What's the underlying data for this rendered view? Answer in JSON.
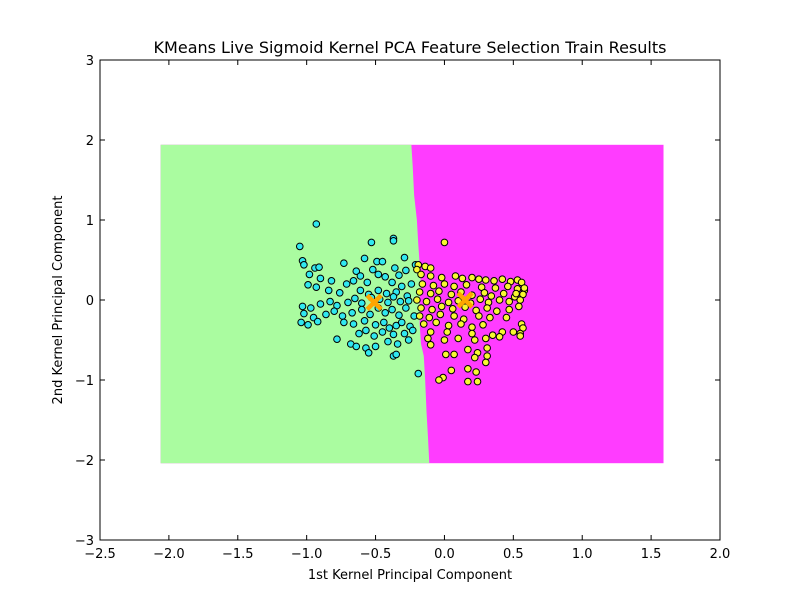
{
  "chart_data": {
    "type": "scatter",
    "title": "KMeans Live Sigmoid Kernel PCA Feature Selection Train Results",
    "xlabel": "1st Kernel Principal Component",
    "ylabel": "2nd Kernel Principal Component",
    "xlim": [
      -2.5,
      2.0
    ],
    "ylim": [
      -3,
      3
    ],
    "xticks": [
      -2.5,
      -2.0,
      -1.5,
      -1.0,
      -0.5,
      0.0,
      0.5,
      1.0,
      1.5,
      2.0
    ],
    "xtick_labels": [
      "−2.5",
      "−2.0",
      "−1.5",
      "−1.0",
      "−0.5",
      "0.0",
      "0.5",
      "1.0",
      "1.5",
      "2.0"
    ],
    "yticks": [
      -3,
      -2,
      -1,
      0,
      1,
      2,
      3
    ],
    "ytick_labels": [
      "−3",
      "−2",
      "−1",
      "0",
      "1",
      "2",
      "3"
    ],
    "grid": false,
    "decision_regions": {
      "x_range": [
        -2.06,
        1.59
      ],
      "y_range": [
        -2.04,
        1.94
      ],
      "boundary": [
        [
          1.94,
          -0.24
        ],
        [
          1.66,
          -0.23
        ],
        [
          1.31,
          -0.22
        ],
        [
          1.0,
          -0.2
        ],
        [
          0.7,
          -0.19
        ],
        [
          0.45,
          -0.18
        ],
        [
          0.2,
          -0.17
        ],
        [
          0.0,
          -0.18
        ],
        [
          -0.3,
          -0.18
        ],
        [
          -0.55,
          -0.17
        ],
        [
          -0.7,
          -0.15
        ],
        [
          -1.0,
          -0.14
        ],
        [
          -1.4,
          -0.13
        ],
        [
          -1.7,
          -0.12
        ],
        [
          -2.04,
          -0.11
        ]
      ],
      "left_color": "#aafca0",
      "right_color": "#ff3cff"
    },
    "series": [
      {
        "color": "#30e8f0",
        "points": [
          [
            -1.05,
            0.67
          ],
          [
            -0.93,
            0.95
          ],
          [
            -0.53,
            0.72
          ],
          [
            -0.37,
            0.77
          ],
          [
            -0.37,
            0.74
          ],
          [
            -0.29,
            0.53
          ],
          [
            -0.58,
            0.52
          ],
          [
            -0.49,
            0.48
          ],
          [
            -0.45,
            0.48
          ],
          [
            -1.03,
            0.49
          ],
          [
            -1.02,
            0.44
          ],
          [
            -0.73,
            0.46
          ],
          [
            -0.94,
            0.4
          ],
          [
            -0.91,
            0.41
          ],
          [
            -0.36,
            0.4
          ],
          [
            -0.52,
            0.38
          ],
          [
            -0.98,
            0.32
          ],
          [
            -0.64,
            0.36
          ],
          [
            -0.61,
            0.3
          ],
          [
            -0.48,
            0.32
          ],
          [
            -0.43,
            0.29
          ],
          [
            -0.33,
            0.31
          ],
          [
            -0.28,
            0.37
          ],
          [
            -0.9,
            0.27
          ],
          [
            -0.82,
            0.24
          ],
          [
            -0.99,
            0.19
          ],
          [
            -0.93,
            0.16
          ],
          [
            -0.71,
            0.2
          ],
          [
            -0.66,
            0.24
          ],
          [
            -0.56,
            0.22
          ],
          [
            -0.38,
            0.22
          ],
          [
            -0.31,
            0.17
          ],
          [
            -0.84,
            0.12
          ],
          [
            -0.76,
            0.09
          ],
          [
            -0.61,
            0.12
          ],
          [
            -0.55,
            0.07
          ],
          [
            -0.48,
            0.12
          ],
          [
            -0.42,
            0.08
          ],
          [
            -0.35,
            0.1
          ],
          [
            -0.27,
            0.05
          ],
          [
            -1.03,
            -0.08
          ],
          [
            -0.97,
            -0.1
          ],
          [
            -0.9,
            -0.05
          ],
          [
            -0.83,
            -0.02
          ],
          [
            -0.78,
            -0.07
          ],
          [
            -0.7,
            -0.03
          ],
          [
            -0.65,
            0.02
          ],
          [
            -0.6,
            -0.04
          ],
          [
            -0.53,
            0.03
          ],
          [
            -0.47,
            0.01
          ],
          [
            -0.41,
            -0.03
          ],
          [
            -0.37,
            0.04
          ],
          [
            -0.32,
            -0.02
          ],
          [
            -0.26,
            -0.01
          ],
          [
            -1.02,
            -0.17
          ],
          [
            -0.95,
            -0.22
          ],
          [
            -0.86,
            -0.18
          ],
          [
            -0.8,
            -0.14
          ],
          [
            -0.74,
            -0.2
          ],
          [
            -0.67,
            -0.16
          ],
          [
            -0.6,
            -0.12
          ],
          [
            -0.54,
            -0.18
          ],
          [
            -0.48,
            -0.1
          ],
          [
            -0.43,
            -0.16
          ],
          [
            -0.38,
            -0.12
          ],
          [
            -0.33,
            -0.19
          ],
          [
            -0.28,
            -0.1
          ],
          [
            -1.04,
            -0.28
          ],
          [
            -0.99,
            -0.31
          ],
          [
            -0.92,
            -0.27
          ],
          [
            -0.73,
            -0.28
          ],
          [
            -0.66,
            -0.3
          ],
          [
            -0.58,
            -0.26
          ],
          [
            -0.5,
            -0.31
          ],
          [
            -0.44,
            -0.28
          ],
          [
            -0.4,
            -0.35
          ],
          [
            -0.35,
            -0.32
          ],
          [
            -0.31,
            -0.28
          ],
          [
            -0.25,
            -0.33
          ],
          [
            -0.62,
            -0.42
          ],
          [
            -0.57,
            -0.38
          ],
          [
            -0.51,
            -0.45
          ],
          [
            -0.45,
            -0.4
          ],
          [
            -0.37,
            -0.43
          ],
          [
            -0.29,
            -0.42
          ],
          [
            -0.23,
            -0.38
          ],
          [
            -0.78,
            -0.49
          ],
          [
            -0.68,
            -0.55
          ],
          [
            -0.64,
            -0.58
          ],
          [
            -0.57,
            -0.6
          ],
          [
            -0.5,
            -0.58
          ],
          [
            -0.41,
            -0.52
          ],
          [
            -0.34,
            -0.55
          ],
          [
            -0.26,
            -0.5
          ],
          [
            -0.55,
            -0.66
          ],
          [
            -0.37,
            -0.7
          ],
          [
            -0.35,
            -0.68
          ],
          [
            -0.19,
            -0.92
          ],
          [
            -0.21,
            0.44
          ],
          [
            -0.24,
            0.2
          ],
          [
            -0.22,
            -0.2
          ]
        ]
      },
      {
        "color": "#f8f830",
        "points": [
          [
            0.0,
            0.72
          ],
          [
            -0.19,
            0.44
          ],
          [
            -0.14,
            0.42
          ],
          [
            -0.1,
            0.4
          ],
          [
            -0.2,
            0.38
          ],
          [
            -0.17,
            0.32
          ],
          [
            -0.1,
            0.3
          ],
          [
            -0.02,
            0.28
          ],
          [
            0.08,
            0.3
          ],
          [
            0.13,
            0.27
          ],
          [
            0.2,
            0.28
          ],
          [
            0.25,
            0.26
          ],
          [
            0.3,
            0.25
          ],
          [
            0.36,
            0.24
          ],
          [
            0.42,
            0.26
          ],
          [
            0.48,
            0.23
          ],
          [
            0.53,
            0.25
          ],
          [
            0.56,
            0.22
          ],
          [
            -0.16,
            0.2
          ],
          [
            -0.08,
            0.18
          ],
          [
            0.0,
            0.2
          ],
          [
            0.07,
            0.17
          ],
          [
            0.16,
            0.19
          ],
          [
            0.27,
            0.16
          ],
          [
            0.37,
            0.15
          ],
          [
            0.46,
            0.17
          ],
          [
            0.53,
            0.14
          ],
          [
            0.58,
            0.12
          ],
          [
            -0.18,
            0.1
          ],
          [
            -0.1,
            0.08
          ],
          [
            -0.04,
            0.11
          ],
          [
            0.05,
            0.07
          ],
          [
            0.12,
            0.1
          ],
          [
            0.2,
            0.06
          ],
          [
            0.29,
            0.09
          ],
          [
            0.34,
            0.05
          ],
          [
            0.43,
            0.08
          ],
          [
            0.51,
            0.04
          ],
          [
            0.57,
            0.07
          ],
          [
            -0.2,
            0.0
          ],
          [
            -0.13,
            -0.02
          ],
          [
            -0.05,
            0.01
          ],
          [
            0.03,
            -0.03
          ],
          [
            0.1,
            -0.01
          ],
          [
            0.19,
            -0.04
          ],
          [
            0.26,
            0.01
          ],
          [
            0.32,
            -0.03
          ],
          [
            0.4,
            0.0
          ],
          [
            0.47,
            -0.02
          ],
          [
            0.55,
            0.0
          ],
          [
            -0.17,
            -0.1
          ],
          [
            -0.09,
            -0.12
          ],
          [
            -0.02,
            -0.08
          ],
          [
            0.06,
            -0.11
          ],
          [
            0.15,
            -0.09
          ],
          [
            0.23,
            -0.13
          ],
          [
            0.31,
            -0.1
          ],
          [
            0.38,
            -0.14
          ],
          [
            0.47,
            -0.12
          ],
          [
            0.54,
            -0.08
          ],
          [
            -0.18,
            -0.2
          ],
          [
            -0.11,
            -0.22
          ],
          [
            -0.03,
            -0.18
          ],
          [
            0.07,
            -0.2
          ],
          [
            0.14,
            -0.24
          ],
          [
            0.25,
            -0.2
          ],
          [
            0.33,
            -0.22
          ],
          [
            0.45,
            -0.22
          ],
          [
            0.56,
            -0.3
          ],
          [
            -0.15,
            -0.3
          ],
          [
            -0.06,
            -0.28
          ],
          [
            0.03,
            -0.32
          ],
          [
            0.12,
            -0.3
          ],
          [
            0.2,
            -0.34
          ],
          [
            0.28,
            -0.31
          ],
          [
            0.57,
            -0.35
          ],
          [
            0.55,
            -0.42
          ],
          [
            0.5,
            -0.4
          ],
          [
            0.42,
            -0.4
          ],
          [
            0.2,
            -0.42
          ],
          [
            0.35,
            -0.44
          ],
          [
            -0.1,
            -0.4
          ],
          [
            0.02,
            -0.4
          ],
          [
            -0.12,
            -0.48
          ],
          [
            0.0,
            -0.5
          ],
          [
            0.1,
            -0.48
          ],
          [
            0.22,
            -0.5
          ],
          [
            0.3,
            -0.48
          ],
          [
            0.4,
            -0.46
          ],
          [
            0.55,
            -0.45
          ],
          [
            -0.1,
            -0.56
          ],
          [
            0.07,
            -0.68
          ],
          [
            0.17,
            -0.62
          ],
          [
            0.24,
            -0.66
          ],
          [
            0.31,
            -0.6
          ],
          [
            0.31,
            -0.7
          ],
          [
            0.3,
            -0.78
          ],
          [
            0.22,
            -0.72
          ],
          [
            0.17,
            -0.86
          ],
          [
            0.23,
            -0.9
          ],
          [
            0.05,
            -0.88
          ],
          [
            0.01,
            -0.68
          ],
          [
            -0.01,
            -0.97
          ],
          [
            -0.04,
            -1.0
          ],
          [
            0.17,
            -1.02
          ],
          [
            0.24,
            -1.02
          ],
          [
            0.58,
            0.15
          ],
          [
            0.52,
            0.08
          ]
        ]
      }
    ],
    "centroids": {
      "marker": "x",
      "color": "#ffa500",
      "points": [
        [
          -0.51,
          -0.03
        ],
        [
          0.15,
          0.0
        ]
      ]
    }
  }
}
